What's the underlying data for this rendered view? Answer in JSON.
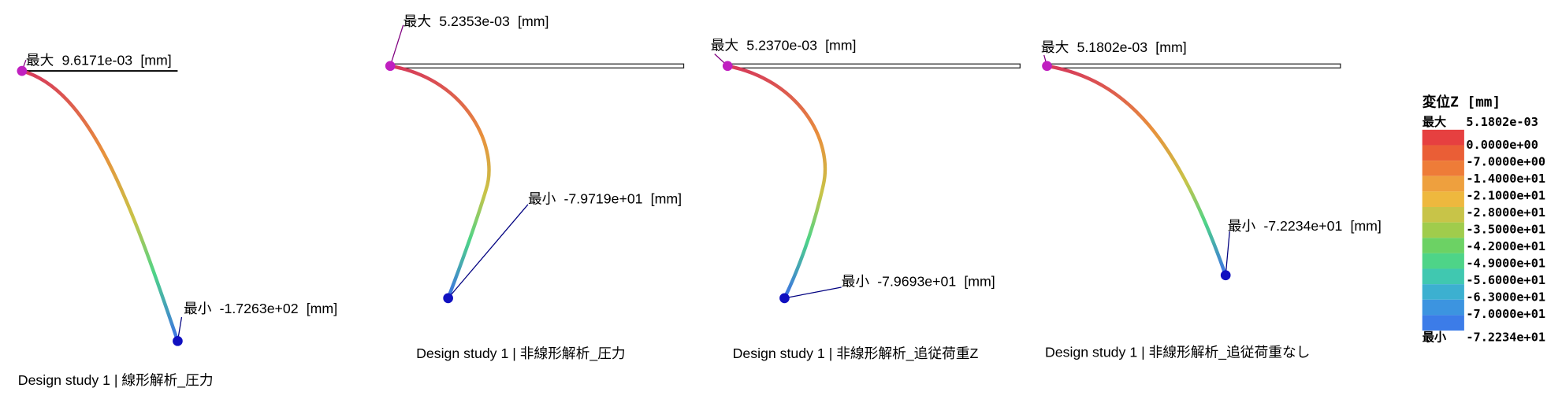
{
  "panels": [
    {
      "max_tag": "最大",
      "max": "9.6171e-03",
      "min_tag": "最小",
      "min": "-1.7263e+02",
      "unit": "[mm]",
      "caption": "Design study 1 | 線形解析_圧力"
    },
    {
      "max_tag": "最大",
      "max": "5.2353e-03",
      "min_tag": "最小",
      "min": "-7.9719e+01",
      "unit": "[mm]",
      "caption": "Design study 1 | 非線形解析_圧力"
    },
    {
      "max_tag": "最大",
      "max": "5.2370e-03",
      "min_tag": "最小",
      "min": "-7.9693e+01",
      "unit": "[mm]",
      "caption": "Design study 1 | 非線形解析_追従荷重Z"
    },
    {
      "max_tag": "最大",
      "max": "5.1802e-03",
      "min_tag": "最小",
      "min": "-7.2234e+01",
      "unit": "[mm]",
      "caption": "Design study 1 | 非線形解析_追従荷重なし"
    }
  ],
  "legend": {
    "title": "変位Z [mm]",
    "max_tag": "最大",
    "max": "5.1802e-03",
    "min_tag": "最小",
    "min": "-7.2234e+01",
    "levels": [
      "0.0000e+00",
      "-7.0000e+00",
      "-1.4000e+01",
      "-2.1000e+01",
      "-2.8000e+01",
      "-3.5000e+01",
      "-4.2000e+01",
      "-4.9000e+01",
      "-5.6000e+01",
      "-6.3000e+01",
      "-7.0000e+01"
    ],
    "colors": [
      "#e64040",
      "#ea5e36",
      "#ee7c38",
      "#eea03e",
      "#eeb83e",
      "#c8c448",
      "#a0cc4c",
      "#6cd264",
      "#4ed488",
      "#40c8b0",
      "#3cb0d0",
      "#3c94e0",
      "#3c7ce8"
    ]
  }
}
